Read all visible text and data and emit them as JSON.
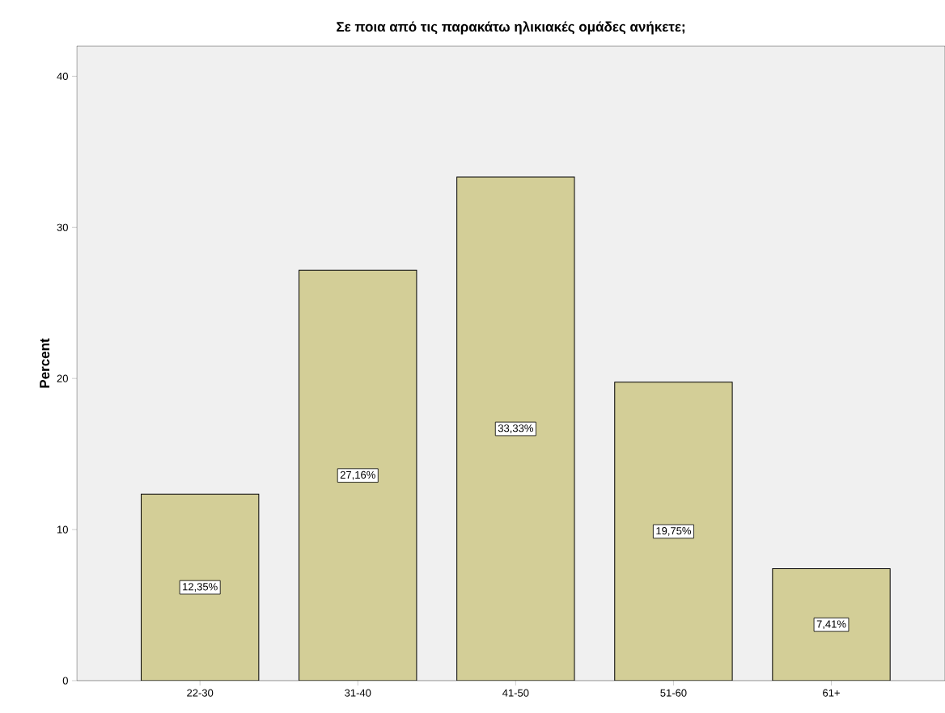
{
  "chart_data": {
    "type": "bar",
    "title": "Σε ποια από τις παρακάτω ηλικιακές ομάδες ανήκετε;",
    "ylabel": "Percent",
    "categories": [
      "22-30",
      "31-40",
      "41-50",
      "51-60",
      "61+"
    ],
    "values": [
      12.35,
      27.16,
      33.33,
      19.75,
      7.41
    ],
    "value_labels": [
      "12,35%",
      "27,16%",
      "33,33%",
      "19,75%",
      "7,41%"
    ],
    "color": "#d3ce97",
    "ylim": [
      0,
      42
    ],
    "yticks": [
      0,
      10,
      20,
      30,
      40
    ]
  }
}
